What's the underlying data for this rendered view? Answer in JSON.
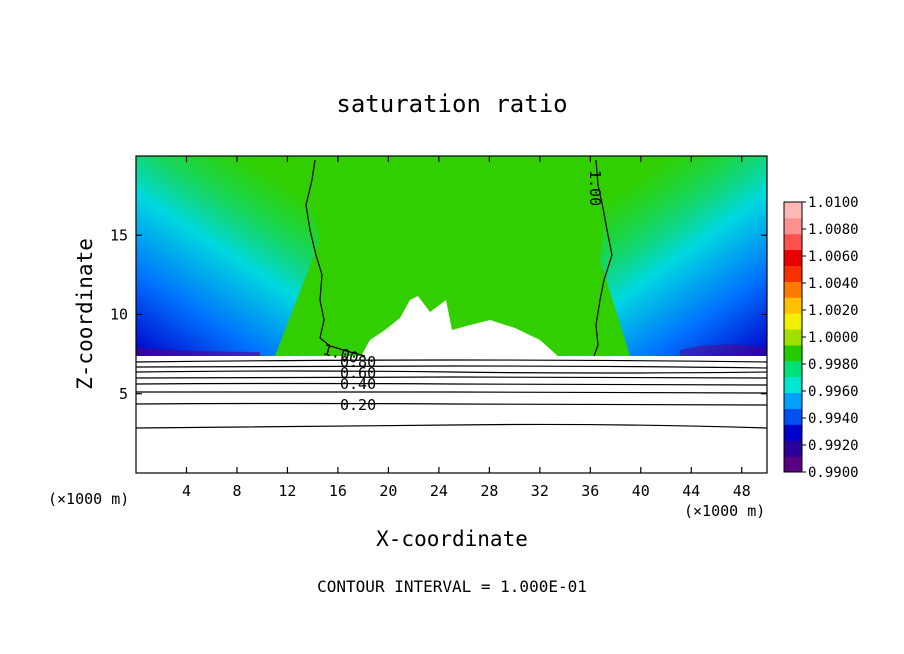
{
  "chart_data": {
    "type": "heatmap",
    "title": "saturation ratio",
    "xlabel": "X-coordinate",
    "ylabel": "Z-coordinate",
    "x_unit_left": "(×1000 m)",
    "x_unit_right": "(×1000 m)",
    "xlim": [
      0,
      50
    ],
    "ylim": [
      0,
      20
    ],
    "x_ticks": [
      4,
      8,
      12,
      16,
      20,
      24,
      28,
      32,
      36,
      40,
      44,
      48
    ],
    "y_ticks": [
      5,
      10,
      15
    ],
    "footer": "CONTOUR INTERVAL = 1.000E-01",
    "colorbar": {
      "min": 0.99,
      "max": 1.01,
      "labels": [
        "1.0100",
        "1.0080",
        "1.0060",
        "1.0040",
        "1.0020",
        "1.0000",
        "0.9980",
        "0.9960",
        "0.9940",
        "0.9920",
        "0.9900"
      ],
      "colors": [
        "#5a0080",
        "#2a0098",
        "#0000c8",
        "#0050f0",
        "#00a0ff",
        "#00e6d2",
        "#00e07a",
        "#22cc00",
        "#a0e000",
        "#f0f000",
        "#ffc000",
        "#ff7a00",
        "#f83000",
        "#e80000",
        "#ff5050",
        "#ff9090",
        "#ffb8b8"
      ]
    },
    "contours": [
      {
        "label": "1.00",
        "x": [
          14.2,
          18.0
        ],
        "y": [
          19.8,
          7.2
        ]
      },
      {
        "label": "1.00",
        "x": [
          36.3,
          35.9
        ],
        "y": [
          19.8,
          7.2
        ]
      },
      {
        "label": "0.80",
        "z": 7.0
      },
      {
        "label": "0.60",
        "z": 6.4
      },
      {
        "label": "0.40",
        "z": 5.8
      },
      {
        "label": "0.20",
        "z": 4.3
      },
      {
        "label": "",
        "z": 2.9
      }
    ],
    "cloud_base_z": 7.4
  }
}
